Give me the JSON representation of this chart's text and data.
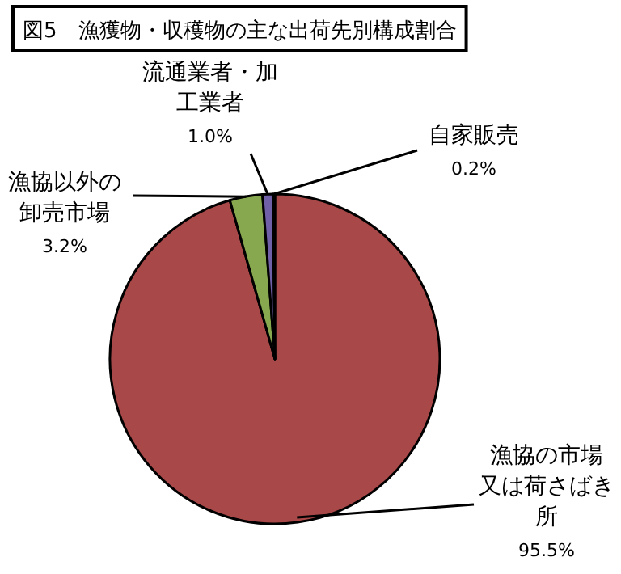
{
  "chart_data": {
    "type": "pie",
    "title": "図5　漁獲物・収穫物の主な出荷先別構成割合",
    "categories": [
      "漁協の市場又は荷さばき所",
      "漁協以外の卸売市場",
      "流通業者・加工業者",
      "自家販売"
    ],
    "values": [
      95.5,
      3.2,
      1.0,
      0.2
    ],
    "value_labels": [
      "95.5%",
      "3.2%",
      "1.0%",
      "0.2%"
    ],
    "colors": [
      "#a84848",
      "#88a850",
      "#7060a8",
      "#202020"
    ]
  }
}
